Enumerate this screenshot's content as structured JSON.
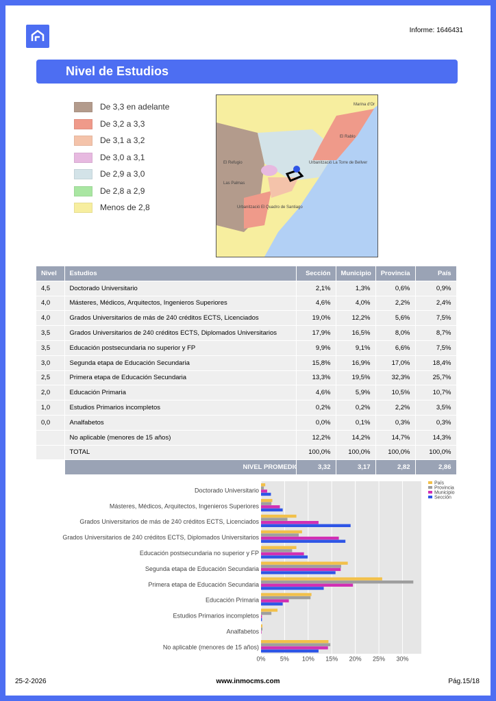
{
  "header": {
    "report": "Informe: 1646431",
    "title": "Nivel de Estudios"
  },
  "legend": [
    "De 3,3 en adelante",
    "De 3,2 a 3,3",
    "De 3,1 a 3,2",
    "De 3,0 a 3,1",
    "De 2,9 a 3,0",
    "De 2,8 a 2,9",
    "Menos de 2,8"
  ],
  "map": {
    "labels": [
      "Marina d'Or",
      "El Rablo",
      "Urbanització La Torre de Bellver",
      "El Refugio",
      "Las Palmas",
      "Urbanització El Quadro de Santiago"
    ]
  },
  "table": {
    "columns": [
      "Nivel",
      "Estudios",
      "Sección",
      "Municipio",
      "Provincia",
      "País"
    ],
    "rows": [
      [
        "4,5",
        "Doctorado Universitario",
        "2,1%",
        "1,3%",
        "0,6%",
        "0,9%"
      ],
      [
        "4,0",
        "Másteres, Médicos, Arquitectos,  Ingenieros Superiores",
        "4,6%",
        "4,0%",
        "2,2%",
        "2,4%"
      ],
      [
        "4,0",
        "Grados Universitarios de más de 240 créditos ECTS, Licenciados",
        "19,0%",
        "12,2%",
        "5,6%",
        "7,5%"
      ],
      [
        "3,5",
        "Grados Universitarios de 240 créditos ECTS, Diplomados Universitarios",
        "17,9%",
        "16,5%",
        "8,0%",
        "8,7%"
      ],
      [
        "3,5",
        "Educación postsecundaria no superior y FP",
        "9,9%",
        "9,1%",
        "6,6%",
        "7,5%"
      ],
      [
        "3,0",
        "Segunda etapa de Educación Secundaria",
        "15,8%",
        "16,9%",
        "17,0%",
        "18,4%"
      ],
      [
        "2,5",
        "Primera etapa de Educación Secundaria",
        "13,3%",
        "19,5%",
        "32,3%",
        "25,7%"
      ],
      [
        "2,0",
        "Educación Primaria",
        "4,6%",
        "5,9%",
        "10,5%",
        "10,7%"
      ],
      [
        "1,0",
        "Estudios Primarios incompletos",
        "0,2%",
        "0,2%",
        "2,2%",
        "3,5%"
      ],
      [
        "0,0",
        "Analfabetos",
        "0,0%",
        "0,1%",
        "0,3%",
        "0,3%"
      ],
      [
        null,
        "No aplicable (menores de 15 años)",
        "12,2%",
        "14,2%",
        "14,7%",
        "14,3%"
      ],
      [
        null,
        "TOTAL",
        "100,0%",
        "100,0%",
        "100,0%",
        "100,0%"
      ]
    ],
    "footer": [
      "NIVEL PROMEDIO",
      "3,32",
      "3,17",
      "2,82",
      "2,86"
    ]
  },
  "chart_data": {
    "type": "hbar",
    "categories": [
      "Doctorado Universitario",
      "Másteres, Médicos, Arquitectos,  Ingenieros Superiores",
      "Grados Universitarios de más de 240 créditos ECTS, Licenciados",
      "Grados Universitarios de 240 créditos ECTS, Diplomados Universitarios",
      "Educación postsecundaria no superior y FP",
      "Segunda etapa de Educación Secundaria",
      "Primera etapa de Educación Secundaria",
      "Educación Primaria",
      "Estudios Primarios incompletos",
      "Analfabetos",
      "No aplicable (menores de 15 años)"
    ],
    "series": [
      {
        "name": "País",
        "color": "#f2c04a",
        "values": [
          0.9,
          2.4,
          7.5,
          8.7,
          7.5,
          18.4,
          25.7,
          10.7,
          3.5,
          0.3,
          14.3
        ]
      },
      {
        "name": "Provincia",
        "color": "#9e9e9e",
        "values": [
          0.6,
          2.2,
          5.6,
          8.0,
          6.6,
          17.0,
          32.3,
          10.5,
          2.2,
          0.3,
          14.7
        ]
      },
      {
        "name": "Municipio",
        "color": "#d12fb4",
        "values": [
          1.3,
          4.0,
          12.2,
          16.5,
          9.1,
          16.9,
          19.5,
          5.9,
          0.2,
          0.1,
          14.2
        ]
      },
      {
        "name": "Sección",
        "color": "#2e55e6",
        "values": [
          2.1,
          4.6,
          19.0,
          17.9,
          9.9,
          15.8,
          13.3,
          4.6,
          0.2,
          0.0,
          12.2
        ]
      }
    ],
    "xlim": [
      0,
      34
    ],
    "xticks": [
      {
        "value": 0,
        "label": "0%"
      },
      {
        "value": 5,
        "label": "5%"
      },
      {
        "value": 10,
        "label": "10%"
      },
      {
        "value": 15,
        "label": "15%"
      },
      {
        "value": 20,
        "label": "20%"
      },
      {
        "value": 25,
        "label": "25%"
      },
      {
        "value": 30,
        "label": "30%"
      }
    ],
    "grid": true
  },
  "footer": {
    "date": "25-2-2026",
    "site": "www.inmocms.com",
    "page": "Pág.15/18"
  }
}
